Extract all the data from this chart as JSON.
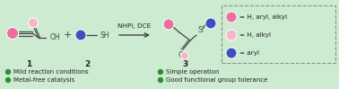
{
  "bg_color": "#cdebd0",
  "arrow_label": "NHPI, DCE",
  "compound1_label": "1",
  "compound2_label": "2",
  "compound3_label": "3",
  "legend_items": [
    {
      "color": "#e8709a",
      "text": "= H, aryl, alkyl"
    },
    {
      "color": "#f5b8cb",
      "text": "= H, alkyl"
    },
    {
      "color": "#3c4ec2",
      "text": "= aryl"
    }
  ],
  "bullet_points": [
    {
      "col": 0,
      "row": 0,
      "text": "Mild reaction conditions"
    },
    {
      "col": 0,
      "row": 1,
      "text": "Metal-free catalysis"
    },
    {
      "col": 1,
      "row": 0,
      "text": "Simple operation"
    },
    {
      "col": 1,
      "row": 1,
      "text": "Good functional group tolerance"
    }
  ],
  "bullet_color": "#2d8c2d",
  "text_color": "#222222",
  "pink_color": "#e8709a",
  "light_pink_color": "#f5b8cb",
  "blue_color": "#3c4ec2",
  "bond_color": "#444444",
  "font_size": 5.5,
  "label_font_size": 6.5,
  "legend_font_size": 5.2,
  "bullet_font_size": 5.0
}
